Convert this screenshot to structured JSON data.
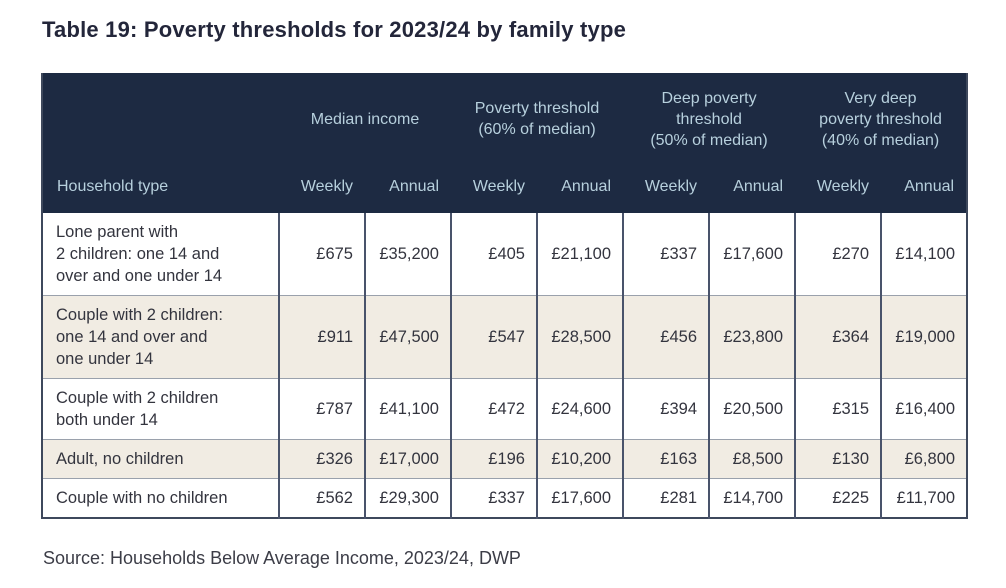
{
  "title": "Table 19: Poverty thresholds for 2023/24 by family type",
  "source": "Source: Households Below Average Income, 2023/24, DWP",
  "colors": {
    "header_bg": "#1d2a42",
    "header_text": "#b7d0dd",
    "row_alt_bg": "#f1ece3",
    "row_bg": "#ffffff",
    "body_text": "#33343e",
    "title_text": "#23263a",
    "border_vertical": "#49536b",
    "border_horizontal": "#9aa1ac"
  },
  "table": {
    "row_header": "Household type",
    "groups": [
      {
        "label": "Median income"
      },
      {
        "label": "Poverty threshold\n(60% of median)"
      },
      {
        "label": "Deep poverty\nthreshold\n(50% of median)"
      },
      {
        "label": "Very deep\npoverty threshold\n(40% of median)"
      }
    ],
    "sub_columns": [
      "Weekly",
      "Annual"
    ],
    "rows": [
      {
        "household": "Lone parent with\n2 children: one 14 and\nover and one under 14",
        "values": [
          "£675",
          "£35,200",
          "£405",
          "£21,100",
          "£337",
          "£17,600",
          "£270",
          "£14,100"
        ]
      },
      {
        "household": "Couple with 2 children:\none 14 and over and\none under 14",
        "values": [
          "£911",
          "£47,500",
          "£547",
          "£28,500",
          "£456",
          "£23,800",
          "£364",
          "£19,000"
        ]
      },
      {
        "household": "Couple with 2 children\nboth under 14",
        "values": [
          "£787",
          "£41,100",
          "£472",
          "£24,600",
          "£394",
          "£20,500",
          "£315",
          "£16,400"
        ]
      },
      {
        "household": "Adult, no children",
        "values": [
          "£326",
          "£17,000",
          "£196",
          "£10,200",
          "£163",
          "£8,500",
          "£130",
          "£6,800"
        ]
      },
      {
        "household": "Couple with no children",
        "values": [
          "£562",
          "£29,300",
          "£337",
          "£17,600",
          "£281",
          "£14,700",
          "£225",
          "£11,700"
        ]
      }
    ]
  }
}
